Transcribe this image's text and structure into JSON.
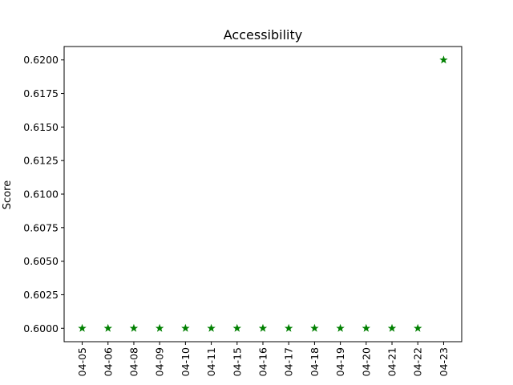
{
  "chart_data": {
    "type": "scatter",
    "title": "Accessibility",
    "xlabel": "",
    "ylabel": "Score",
    "categories": [
      "04-05",
      "04-06",
      "04-08",
      "04-09",
      "04-10",
      "04-11",
      "04-15",
      "04-16",
      "04-17",
      "04-18",
      "04-19",
      "04-20",
      "04-21",
      "04-22",
      "04-23"
    ],
    "series": [
      {
        "values": [
          0.6,
          0.6,
          0.6,
          0.6,
          0.6,
          0.6,
          0.6,
          0.6,
          0.6,
          0.6,
          0.6,
          0.6,
          0.6,
          0.6,
          0.62
        ],
        "marker": "star",
        "color": "#008000"
      }
    ],
    "ylim": [
      0.599,
      0.621
    ],
    "yticks": [
      0.6,
      0.6025,
      0.605,
      0.6075,
      0.61,
      0.6125,
      0.615,
      0.6175,
      0.62
    ],
    "ytick_labels": [
      "0.6000",
      "0.6025",
      "0.6050",
      "0.6075",
      "0.6100",
      "0.6125",
      "0.6150",
      "0.6175",
      "0.6200"
    ],
    "xtick_rotation": 90,
    "grid": false,
    "legend": false
  }
}
